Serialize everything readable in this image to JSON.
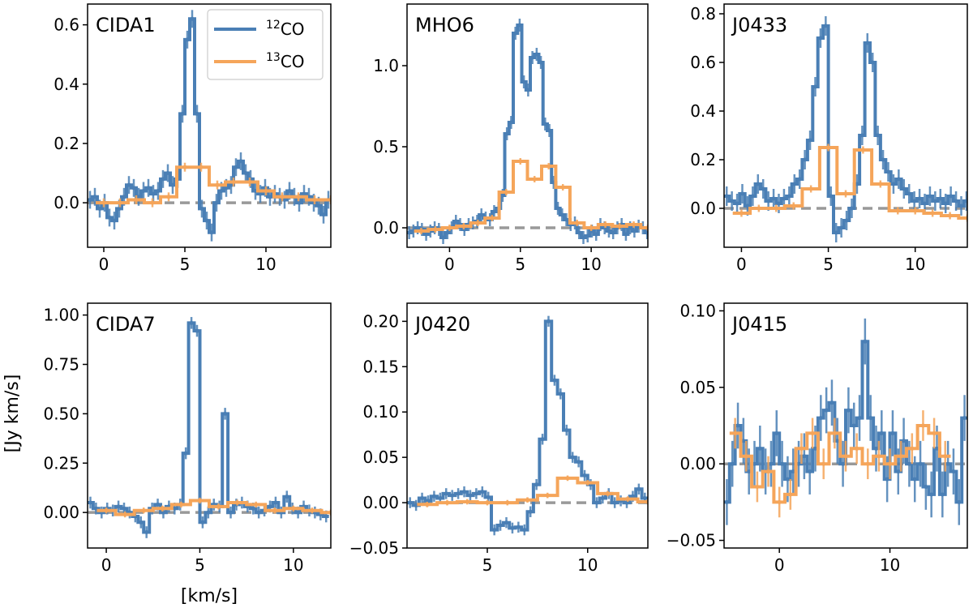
{
  "colors": {
    "co12": "#4a7fb5",
    "co13": "#f5a55a",
    "zero_line": "#999999"
  },
  "legend": {
    "co12_mass": "12",
    "co12_label": "CO",
    "co13_mass": "13",
    "co13_label": "CO"
  },
  "axis_labels": {
    "xlabel": "[km/s]",
    "ylabel": "[Jy km/s]"
  },
  "chart_data": [
    {
      "type": "line",
      "title": "CIDA1",
      "xlim": [
        -1,
        14
      ],
      "ylim": [
        -0.15,
        0.67
      ],
      "xticks": [
        {
          "v": 0,
          "t": "0"
        },
        {
          "v": 5,
          "t": "5"
        },
        {
          "v": 10,
          "t": "10"
        }
      ],
      "yticks": [
        {
          "v": 0,
          "t": "0.0"
        },
        {
          "v": 0.2,
          "t": "0.2"
        },
        {
          "v": 0.4,
          "t": "0.4"
        },
        {
          "v": 0.6,
          "t": "0.6"
        }
      ],
      "series": [
        {
          "name": "12CO",
          "x": [
            -1.0,
            -0.7,
            -0.4,
            -0.1,
            0.2,
            0.5,
            0.8,
            1.1,
            1.4,
            1.7,
            2.0,
            2.3,
            2.6,
            2.9,
            3.2,
            3.5,
            3.8,
            4.1,
            4.4,
            4.7,
            5.0,
            5.3,
            5.6,
            5.9,
            6.2,
            6.5,
            6.8,
            7.1,
            7.4,
            7.7,
            8.0,
            8.3,
            8.6,
            8.9,
            9.2,
            9.5,
            9.8,
            10.1,
            10.4,
            10.7,
            11.0,
            11.3,
            11.6,
            11.9,
            12.2,
            12.5,
            12.8,
            13.1,
            13.4,
            13.7
          ],
          "y": [
            0.01,
            0.02,
            -0.02,
            0.0,
            -0.05,
            -0.06,
            -0.02,
            0.02,
            0.06,
            0.05,
            0.02,
            0.04,
            0.05,
            0.03,
            0.04,
            0.08,
            0.1,
            0.06,
            0.08,
            0.3,
            0.55,
            0.62,
            0.3,
            -0.02,
            -0.06,
            -0.1,
            0.0,
            0.04,
            0.05,
            0.06,
            0.12,
            0.14,
            0.1,
            0.08,
            0.04,
            0.03,
            0.05,
            0.02,
            0.03,
            0.02,
            0.01,
            0.04,
            0.02,
            0.0,
            0.03,
            0.02,
            0.0,
            -0.01,
            -0.04,
            0.01
          ],
          "err": 0.03
        },
        {
          "name": "13CO",
          "x": [
            -0.5,
            0.5,
            1.5,
            2.5,
            3.5,
            4.5,
            5.5,
            6.5,
            7.5,
            8.5,
            9.5,
            10.5,
            11.5,
            12.5,
            13.5
          ],
          "y": [
            0.0,
            0.0,
            0.01,
            0.0,
            0.02,
            0.12,
            0.12,
            0.06,
            0.07,
            0.07,
            0.04,
            0.02,
            0.02,
            0.01,
            0.01
          ],
          "err": 0.015
        }
      ]
    },
    {
      "type": "line",
      "title": "MHO6",
      "xlim": [
        -3,
        14
      ],
      "ylim": [
        -0.12,
        1.38
      ],
      "xticks": [
        {
          "v": 0,
          "t": "0"
        },
        {
          "v": 5,
          "t": "5"
        },
        {
          "v": 10,
          "t": "10"
        }
      ],
      "yticks": [
        {
          "v": 0,
          "t": "0.0"
        },
        {
          "v": 0.5,
          "t": "0.5"
        },
        {
          "v": 1.0,
          "t": "1.0"
        }
      ],
      "series": [
        {
          "name": "12CO",
          "x": [
            -3.0,
            -2.7,
            -2.4,
            -2.1,
            -1.8,
            -1.5,
            -1.2,
            -0.9,
            -0.6,
            -0.3,
            0.0,
            0.3,
            0.6,
            0.9,
            1.2,
            1.5,
            1.8,
            2.1,
            2.4,
            2.7,
            3.0,
            3.3,
            3.6,
            3.9,
            4.2,
            4.5,
            4.8,
            5.1,
            5.4,
            5.7,
            6.0,
            6.3,
            6.6,
            6.9,
            7.2,
            7.5,
            7.8,
            8.1,
            8.4,
            8.7,
            9.0,
            9.3,
            9.6,
            9.9,
            10.2,
            10.5,
            10.8,
            11.1,
            11.4,
            11.7,
            12.0,
            12.3,
            12.6,
            12.9,
            13.2,
            13.5,
            13.8
          ],
          "y": [
            -0.03,
            -0.02,
            0.0,
            -0.01,
            -0.04,
            -0.02,
            0.0,
            -0.01,
            -0.06,
            -0.03,
            0.0,
            0.04,
            0.02,
            -0.01,
            0.02,
            0.03,
            0.04,
            0.08,
            0.06,
            0.05,
            0.1,
            0.12,
            0.2,
            0.58,
            0.65,
            1.2,
            1.25,
            0.9,
            0.85,
            1.05,
            1.07,
            1.02,
            0.64,
            0.6,
            0.28,
            0.12,
            0.08,
            0.05,
            0.02,
            0.03,
            -0.03,
            -0.06,
            -0.05,
            -0.02,
            -0.04,
            0.02,
            0.0,
            -0.02,
            -0.03,
            0.0,
            0.02,
            -0.04,
            0.0,
            -0.02,
            0.01,
            0.0,
            -0.03
          ],
          "err": 0.04
        },
        {
          "name": "13CO",
          "x": [
            -2.5,
            -1.5,
            -0.5,
            0.5,
            1.5,
            2.5,
            3.5,
            4.5,
            5.5,
            6.5,
            7.5,
            8.5,
            9.5,
            10.5,
            11.5,
            12.5,
            13.5
          ],
          "y": [
            -0.02,
            -0.01,
            0.0,
            0.01,
            0.03,
            0.06,
            0.22,
            0.41,
            0.3,
            0.38,
            0.25,
            0.03,
            0.0,
            0.02,
            0.01,
            0.02,
            0.0
          ],
          "err": 0.02
        }
      ]
    },
    {
      "type": "line",
      "title": "J0433",
      "xlim": [
        -1,
        13
      ],
      "ylim": [
        -0.16,
        0.84
      ],
      "xticks": [
        {
          "v": 0,
          "t": "0"
        },
        {
          "v": 5,
          "t": "5"
        },
        {
          "v": 10,
          "t": "10"
        }
      ],
      "yticks": [
        {
          "v": 0,
          "t": "0.0"
        },
        {
          "v": 0.2,
          "t": "0.2"
        },
        {
          "v": 0.4,
          "t": "0.4"
        },
        {
          "v": 0.6,
          "t": "0.6"
        },
        {
          "v": 0.8,
          "t": "0.8"
        }
      ],
      "series": [
        {
          "name": "12CO",
          "x": [
            -1.0,
            -0.7,
            -0.4,
            -0.1,
            0.2,
            0.5,
            0.8,
            1.1,
            1.4,
            1.7,
            2.0,
            2.3,
            2.6,
            2.9,
            3.2,
            3.5,
            3.8,
            4.1,
            4.4,
            4.7,
            5.0,
            5.3,
            5.6,
            5.9,
            6.2,
            6.5,
            6.8,
            7.1,
            7.4,
            7.7,
            8.0,
            8.3,
            8.6,
            8.9,
            9.2,
            9.5,
            9.8,
            10.1,
            10.4,
            10.7,
            11.0,
            11.3,
            11.6,
            11.9,
            12.2,
            12.5,
            12.8
          ],
          "y": [
            0.05,
            0.03,
            0.02,
            0.06,
            0.01,
            0.05,
            0.1,
            0.08,
            0.03,
            0.04,
            0.02,
            0.04,
            0.05,
            0.1,
            0.12,
            0.2,
            0.28,
            0.5,
            0.7,
            0.75,
            0.05,
            -0.1,
            -0.08,
            -0.05,
            0.0,
            0.1,
            0.3,
            0.68,
            0.6,
            0.3,
            0.2,
            0.15,
            0.1,
            0.12,
            0.08,
            0.06,
            0.03,
            0.04,
            0.02,
            0.05,
            0.03,
            0.04,
            0.02,
            0.05,
            0.03,
            0.01,
            0.03
          ],
          "err": 0.04
        },
        {
          "name": "13CO",
          "x": [
            -0.5,
            0.5,
            1.5,
            2.5,
            3.5,
            4.5,
            5.5,
            6.5,
            7.5,
            8.5,
            9.5,
            10.5,
            11.5,
            12.5
          ],
          "y": [
            -0.02,
            0.0,
            0.0,
            0.01,
            0.08,
            0.25,
            0.06,
            0.24,
            0.1,
            -0.01,
            -0.01,
            -0.02,
            -0.03,
            -0.04
          ],
          "err": 0.015
        }
      ]
    },
    {
      "type": "line",
      "title": "CIDA7",
      "xlim": [
        -1,
        12
      ],
      "ylim": [
        -0.18,
        1.06
      ],
      "xticks": [
        {
          "v": 0,
          "t": "0"
        },
        {
          "v": 5,
          "t": "5"
        },
        {
          "v": 10,
          "t": "10"
        }
      ],
      "yticks": [
        {
          "v": 0,
          "t": "0.00"
        },
        {
          "v": 0.25,
          "t": "0.25"
        },
        {
          "v": 0.5,
          "t": "0.50"
        },
        {
          "v": 0.75,
          "t": "0.75"
        },
        {
          "v": 1.0,
          "t": "1.00"
        }
      ],
      "series": [
        {
          "name": "12CO",
          "x": [
            -1.0,
            -0.7,
            -0.4,
            -0.1,
            0.2,
            0.5,
            0.8,
            1.1,
            1.4,
            1.7,
            2.0,
            2.3,
            2.6,
            2.9,
            3.2,
            3.5,
            3.8,
            4.1,
            4.4,
            4.7,
            5.0,
            5.3,
            5.6,
            5.9,
            6.2,
            6.5,
            6.8,
            7.1,
            7.4,
            7.7,
            8.0,
            8.3,
            8.6,
            8.9,
            9.2,
            9.5,
            9.8,
            10.1,
            10.4,
            10.7,
            11.0,
            11.3,
            11.6
          ],
          "y": [
            0.05,
            0.02,
            0.0,
            0.02,
            0.01,
            0.03,
            0.02,
            0.0,
            -0.02,
            -0.05,
            -0.1,
            0.02,
            0.04,
            0.0,
            0.03,
            0.02,
            0.04,
            0.3,
            0.96,
            0.92,
            -0.05,
            0.0,
            0.04,
            0.03,
            0.5,
            0.0,
            0.04,
            0.05,
            0.03,
            0.02,
            0.0,
            0.01,
            0.03,
            0.05,
            0.0,
            0.08,
            0.02,
            0.0,
            0.03,
            0.01,
            0.0,
            -0.01,
            -0.02
          ],
          "err": 0.03
        },
        {
          "name": "13CO",
          "x": [
            -0.5,
            0.5,
            1.5,
            2.5,
            3.5,
            4.5,
            5.5,
            6.5,
            7.5,
            8.5,
            9.5,
            10.5,
            11.5
          ],
          "y": [
            0.01,
            -0.01,
            0.01,
            0.02,
            0.04,
            0.06,
            0.03,
            0.05,
            0.04,
            0.01,
            0.02,
            0.01,
            0.0
          ],
          "err": 0.015
        }
      ]
    },
    {
      "type": "line",
      "title": "J0420",
      "xlim": [
        1,
        13
      ],
      "ylim": [
        -0.05,
        0.22
      ],
      "xticks": [
        {
          "v": 5,
          "t": "5"
        },
        {
          "v": 10,
          "t": "10"
        }
      ],
      "yticks": [
        {
          "v": -0.05,
          "t": "−0.05"
        },
        {
          "v": 0,
          "t": "0.00"
        },
        {
          "v": 0.05,
          "t": "0.05"
        },
        {
          "v": 0.1,
          "t": "0.10"
        },
        {
          "v": 0.15,
          "t": "0.15"
        },
        {
          "v": 0.2,
          "t": "0.20"
        }
      ],
      "series": [
        {
          "name": "12CO",
          "x": [
            1.0,
            1.3,
            1.6,
            1.9,
            2.2,
            2.5,
            2.8,
            3.1,
            3.4,
            3.7,
            4.0,
            4.3,
            4.6,
            4.9,
            5.2,
            5.5,
            5.8,
            6.1,
            6.4,
            6.7,
            7.0,
            7.3,
            7.6,
            7.9,
            8.2,
            8.5,
            8.8,
            9.1,
            9.4,
            9.7,
            10.0,
            10.3,
            10.6,
            10.9,
            11.2,
            11.5,
            11.8,
            12.1,
            12.4,
            12.7
          ],
          "y": [
            0.0,
            -0.003,
            0.005,
            0.002,
            0.007,
            0.005,
            0.01,
            0.008,
            0.01,
            0.012,
            0.008,
            0.01,
            0.012,
            0.006,
            -0.03,
            -0.025,
            -0.022,
            -0.028,
            -0.027,
            -0.03,
            -0.01,
            0.02,
            0.07,
            0.2,
            0.135,
            0.12,
            0.08,
            0.05,
            0.045,
            0.03,
            0.02,
            0.0,
            0.005,
            0.01,
            0.0,
            0.002,
            0.0,
            0.007,
            0.015,
            0.005
          ],
          "err": 0.006
        },
        {
          "name": "13CO",
          "x": [
            1.5,
            2.5,
            3.5,
            4.5,
            5.5,
            6.5,
            7.5,
            8.5,
            9.5,
            10.5,
            11.5,
            12.5
          ],
          "y": [
            -0.002,
            0.0,
            0.001,
            0.0,
            0.0,
            0.003,
            0.008,
            0.027,
            0.022,
            0.01,
            0.004,
            0.001
          ],
          "err": 0.003
        }
      ]
    },
    {
      "type": "line",
      "title": "J0415",
      "xlim": [
        -5,
        17
      ],
      "ylim": [
        -0.055,
        0.105
      ],
      "xticks": [
        {
          "v": 0,
          "t": "0"
        },
        {
          "v": 10,
          "t": "10"
        }
      ],
      "yticks": [
        {
          "v": -0.05,
          "t": "−0.05"
        },
        {
          "v": 0,
          "t": "0.00"
        },
        {
          "v": 0.05,
          "t": "0.05"
        },
        {
          "v": 0.1,
          "t": "0.10"
        }
      ],
      "series": [
        {
          "name": "12CO",
          "x": [
            -5.0,
            -4.5,
            -4.0,
            -3.5,
            -3.0,
            -2.5,
            -2.0,
            -1.5,
            -1.0,
            -0.5,
            0.0,
            0.5,
            1.0,
            1.5,
            2.0,
            2.5,
            3.0,
            3.5,
            4.0,
            4.5,
            5.0,
            5.5,
            6.0,
            6.5,
            7.0,
            7.5,
            8.0,
            8.5,
            9.0,
            9.5,
            10.0,
            10.5,
            11.0,
            11.5,
            12.0,
            12.5,
            13.0,
            13.5,
            14.0,
            14.5,
            15.0,
            15.5,
            16.0,
            16.5
          ],
          "y": [
            -0.025,
            0.0,
            0.025,
            0.015,
            -0.005,
            0.0,
            0.01,
            -0.005,
            0.0,
            0.02,
            0.0,
            -0.01,
            -0.005,
            0.0,
            0.005,
            -0.005,
            0.01,
            0.03,
            0.035,
            0.04,
            0.015,
            0.0,
            0.035,
            0.025,
            0.03,
            0.08,
            0.03,
            0.01,
            0.02,
            -0.01,
            0.02,
            -0.005,
            0.015,
            0.0,
            -0.01,
            0.0,
            -0.015,
            -0.02,
            0.01,
            -0.02,
            0.0,
            -0.005,
            -0.025,
            0.03
          ],
          "err": 0.015
        },
        {
          "name": "13CO",
          "x": [
            -4.5,
            -3.5,
            -2.5,
            -1.5,
            -0.5,
            0.5,
            1.5,
            2.5,
            3.5,
            4.5,
            5.5,
            6.5,
            7.5,
            8.5,
            9.5,
            10.5,
            11.5,
            12.5,
            13.5,
            14.5
          ],
          "y": [
            0.02,
            0.005,
            -0.015,
            -0.005,
            -0.025,
            -0.02,
            0.01,
            0.02,
            0.0,
            0.02,
            0.005,
            0.01,
            0.0,
            0.005,
            0.0,
            0.005,
            0.01,
            0.025,
            0.02,
            0.005
          ],
          "err": 0.01
        }
      ]
    }
  ]
}
